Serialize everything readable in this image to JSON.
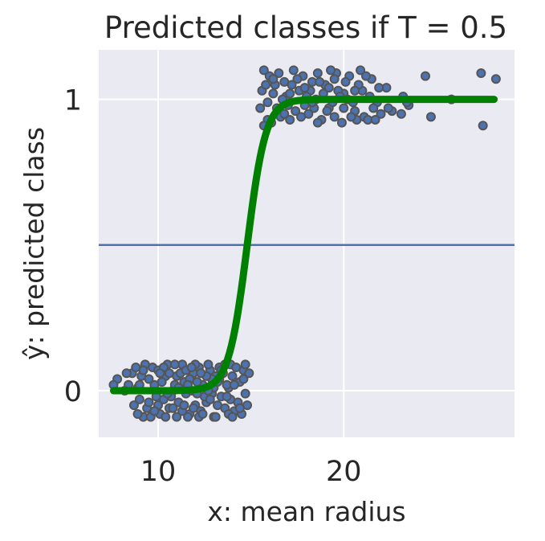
{
  "chart_data": {
    "type": "scatter",
    "title": "Predicted classes if T = 0.5",
    "xlabel": "x: mean radius",
    "ylabel": "ŷ: predicted class",
    "xlim": [
      6.8,
      29.2
    ],
    "ylim": [
      -0.16,
      1.17
    ],
    "xticks": [
      10,
      20
    ],
    "yticks": [
      0,
      1
    ],
    "grid": true,
    "background": "#eaeaf2",
    "threshold": 0.5,
    "logistic_curve": {
      "midpoint": 14.8,
      "slope": 2.0,
      "x_range": [
        7.6,
        28.1
      ],
      "color": "#008000"
    },
    "threshold_line_color": "#4c72b0",
    "point_color": "#4c72b0",
    "point_edge_color": "#555555",
    "series": [
      {
        "class": 0,
        "points": [
          [
            8.6,
            0.06
          ],
          [
            9.2,
            -0.09
          ],
          [
            9.8,
            0.02
          ],
          [
            10.3,
            -0.03
          ],
          [
            11.0,
            0.05
          ],
          [
            11.7,
            -0.08
          ],
          [
            12.2,
            0.08
          ],
          [
            12.9,
            -0.01
          ],
          [
            13.3,
            0.04
          ],
          [
            14.1,
            -0.07
          ],
          [
            14.6,
            0.07
          ],
          [
            9.5,
            0.04
          ],
          [
            10.6,
            -0.06
          ],
          [
            11.3,
            0.09
          ],
          [
            12.6,
            -0.04
          ],
          [
            13.8,
            0.01
          ],
          [
            10.1,
            -0.08
          ],
          [
            11.9,
            0.06
          ],
          [
            13.0,
            -0.09
          ],
          [
            14.4,
            0.03
          ],
          [
            9.0,
            -0.03
          ],
          [
            10.8,
            0.0
          ],
          [
            12.4,
            0.02
          ],
          [
            13.6,
            -0.06
          ],
          [
            11.5,
            -0.01
          ],
          [
            9.7,
            0.08
          ],
          [
            12.0,
            -0.05
          ],
          [
            13.9,
            0.09
          ],
          [
            10.4,
            0.05
          ],
          [
            12.8,
            0.07
          ],
          [
            8.9,
            0.01
          ],
          [
            11.1,
            -0.04
          ],
          [
            13.4,
            -0.02
          ],
          [
            14.3,
            -0.04
          ],
          [
            10.0,
            0.07
          ],
          [
            12.3,
            -0.07
          ],
          [
            9.3,
            0.09
          ],
          [
            11.4,
            0.03
          ],
          [
            13.1,
            0.05
          ],
          [
            14.7,
            -0.01
          ],
          [
            7.8,
            0.04
          ],
          [
            8.7,
            -0.05
          ],
          [
            10.5,
            0.09
          ],
          [
            11.8,
            0.0
          ],
          [
            12.7,
            0.09
          ],
          [
            14.0,
            0.05
          ],
          [
            9.9,
            -0.02
          ],
          [
            11.6,
            -0.09
          ],
          [
            13.5,
            0.06
          ],
          [
            10.9,
            0.02
          ],
          [
            12.1,
            0.03
          ],
          [
            13.2,
            -0.05
          ],
          [
            14.5,
            -0.08
          ],
          [
            9.4,
            -0.06
          ],
          [
            10.2,
            0.03
          ],
          [
            11.2,
            0.06
          ],
          [
            12.5,
            -0.02
          ],
          [
            13.7,
            0.02
          ],
          [
            8.4,
            0.02
          ],
          [
            9.6,
            -0.09
          ],
          [
            10.7,
            -0.02
          ],
          [
            11.9,
            -0.06
          ],
          [
            12.9,
            0.04
          ],
          [
            14.2,
            0.08
          ],
          [
            14.8,
            -0.05
          ],
          [
            8.8,
            0.08
          ],
          [
            10.3,
            0.08
          ],
          [
            11.3,
            -0.07
          ],
          [
            12.2,
            -0.09
          ],
          [
            13.3,
            0.08
          ],
          [
            13.9,
            -0.03
          ],
          [
            9.1,
            0.05
          ],
          [
            10.6,
            0.06
          ],
          [
            11.7,
            0.04
          ],
          [
            12.6,
            0.05
          ],
          [
            13.8,
            -0.08
          ],
          [
            14.6,
            0.04
          ],
          [
            8.3,
            0.06
          ],
          [
            10.0,
            -0.05
          ],
          [
            11.0,
            -0.09
          ],
          [
            12.0,
            0.09
          ],
          [
            13.0,
            0.01
          ],
          [
            14.1,
            0.02
          ],
          [
            9.8,
            -0.07
          ],
          [
            11.5,
            0.07
          ],
          [
            12.8,
            -0.03
          ],
          [
            13.6,
            0.09
          ],
          [
            14.9,
            0.06
          ],
          [
            8.9,
            -0.08
          ],
          [
            10.4,
            -0.09
          ],
          [
            11.1,
            0.01
          ],
          [
            12.4,
            -0.08
          ],
          [
            13.1,
            -0.09
          ],
          [
            14.4,
            -0.06
          ],
          [
            9.2,
            0.07
          ],
          [
            10.9,
            0.09
          ],
          [
            12.3,
            0.06
          ],
          [
            13.4,
            0.07
          ],
          [
            11.6,
            0.02
          ],
          [
            8.2,
            0.0
          ],
          [
            9.5,
            -0.04
          ],
          [
            10.8,
            -0.06
          ],
          [
            12.1,
            -0.01
          ],
          [
            13.7,
            -0.02
          ],
          [
            14.0,
            -0.09
          ],
          [
            11.4,
            -0.05
          ],
          [
            12.7,
            0.0
          ],
          [
            14.7,
            0.09
          ],
          [
            9.0,
            0.02
          ],
          [
            10.5,
            -0.01
          ],
          [
            11.8,
            0.08
          ],
          [
            13.2,
            0.03
          ],
          [
            7.6,
            0.02
          ],
          [
            10.1,
            0.06
          ]
        ]
      },
      {
        "class": 1,
        "points": [
          [
            16.0,
            1.08
          ],
          [
            17.1,
            0.93
          ],
          [
            18.3,
            1.06
          ],
          [
            19.2,
            0.97
          ],
          [
            20.0,
            1.02
          ],
          [
            21.1,
            0.94
          ],
          [
            22.3,
            1.04
          ],
          [
            23.5,
            0.98
          ],
          [
            24.4,
            1.08
          ],
          [
            25.8,
            1.0
          ],
          [
            27.4,
            1.09
          ],
          [
            28.2,
            1.07
          ],
          [
            16.4,
            0.97
          ],
          [
            17.6,
            1.03
          ],
          [
            18.8,
            0.93
          ],
          [
            19.6,
            1.09
          ],
          [
            20.6,
            0.96
          ],
          [
            21.5,
            1.07
          ],
          [
            23.1,
            0.95
          ],
          [
            24.7,
            0.94
          ],
          [
            27.5,
            0.91
          ],
          [
            15.6,
            1.03
          ],
          [
            16.8,
            1.06
          ],
          [
            17.9,
            0.98
          ],
          [
            19.0,
            1.05
          ],
          [
            20.3,
            1.08
          ],
          [
            21.8,
            0.99
          ],
          [
            22.6,
            0.96
          ],
          [
            15.9,
            0.93
          ],
          [
            17.3,
            1.1
          ],
          [
            18.5,
            1.0
          ],
          [
            19.9,
            0.92
          ],
          [
            21.0,
            1.03
          ],
          [
            15.7,
            1.1
          ],
          [
            16.6,
            0.94
          ],
          [
            17.8,
            1.08
          ],
          [
            18.9,
            1.02
          ],
          [
            20.2,
            1.0
          ],
          [
            21.3,
            0.93
          ],
          [
            23.2,
            1.01
          ],
          [
            16.2,
            1.02
          ],
          [
            17.4,
            0.96
          ],
          [
            18.6,
            1.09
          ],
          [
            19.5,
            0.94
          ],
          [
            20.8,
            1.05
          ],
          [
            15.5,
            0.97
          ],
          [
            16.9,
            1.01
          ],
          [
            18.1,
            0.95
          ],
          [
            19.3,
            1.1
          ],
          [
            20.5,
            0.99
          ],
          [
            21.9,
            1.04
          ],
          [
            16.1,
            0.92
          ],
          [
            17.2,
            1.05
          ],
          [
            18.4,
            0.97
          ],
          [
            19.7,
            1.03
          ],
          [
            20.9,
            1.1
          ],
          [
            15.8,
            1.05
          ],
          [
            17.0,
            0.98
          ],
          [
            18.2,
            1.03
          ],
          [
            19.4,
            0.99
          ],
          [
            20.7,
            0.93
          ],
          [
            22.0,
            0.95
          ],
          [
            16.5,
            1.09
          ],
          [
            17.7,
            0.94
          ],
          [
            18.7,
            1.06
          ],
          [
            20.1,
            1.06
          ],
          [
            21.4,
            1.01
          ],
          [
            15.7,
            0.91
          ],
          [
            16.7,
            1.0
          ],
          [
            17.5,
            1.07
          ],
          [
            19.1,
            0.96
          ],
          [
            20.4,
            0.94
          ],
          [
            21.6,
            0.97
          ],
          [
            16.3,
            1.05
          ],
          [
            18.0,
            1.01
          ],
          [
            19.8,
            1.01
          ],
          [
            21.2,
            1.08
          ],
          [
            22.4,
            0.97
          ],
          [
            17.1,
            1.02
          ],
          [
            18.6,
            0.92
          ],
          [
            20.0,
            0.97
          ],
          [
            15.9,
            0.99
          ],
          [
            16.8,
            0.95
          ],
          [
            19.5,
            1.07
          ],
          [
            20.6,
            1.03
          ],
          [
            23.4,
            0.99
          ],
          [
            17.9,
            1.04
          ],
          [
            16.2,
            1.07
          ],
          [
            18.3,
            0.99
          ],
          [
            19.2,
            1.04
          ],
          [
            21.7,
            0.93
          ]
        ]
      }
    ]
  }
}
